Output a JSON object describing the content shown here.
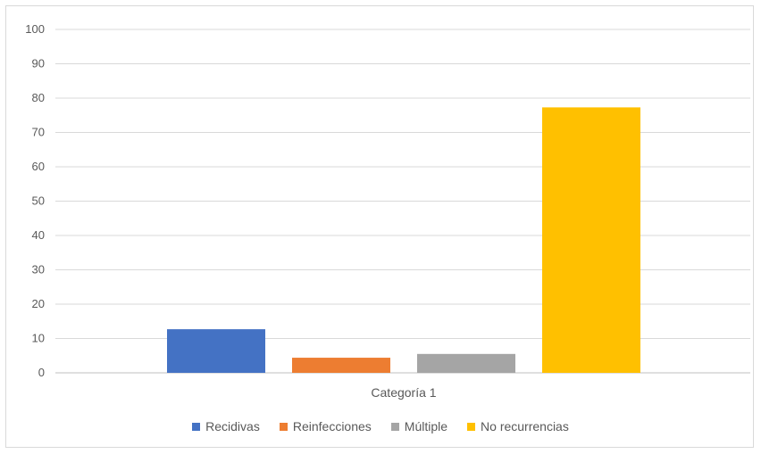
{
  "chart_data": {
    "type": "bar",
    "categories": [
      "Categoría 1"
    ],
    "series": [
      {
        "name": "Recidivas",
        "color": "#4472C4",
        "values": [
          12.7
        ]
      },
      {
        "name": "Reinfecciones",
        "color": "#ED7D31",
        "values": [
          4.4
        ]
      },
      {
        "name": "Múltiple",
        "color": "#A5A5A5",
        "values": [
          5.5
        ]
      },
      {
        "name": "No recurrencias",
        "color": "#FFC000",
        "values": [
          77.3
        ]
      }
    ],
    "title": "",
    "xlabel": "",
    "ylabel": "",
    "ylim": [
      0,
      100
    ],
    "yticks": [
      0,
      10,
      20,
      30,
      40,
      50,
      60,
      70,
      80,
      90,
      100
    ],
    "grid": true,
    "legend_position": "bottom"
  }
}
